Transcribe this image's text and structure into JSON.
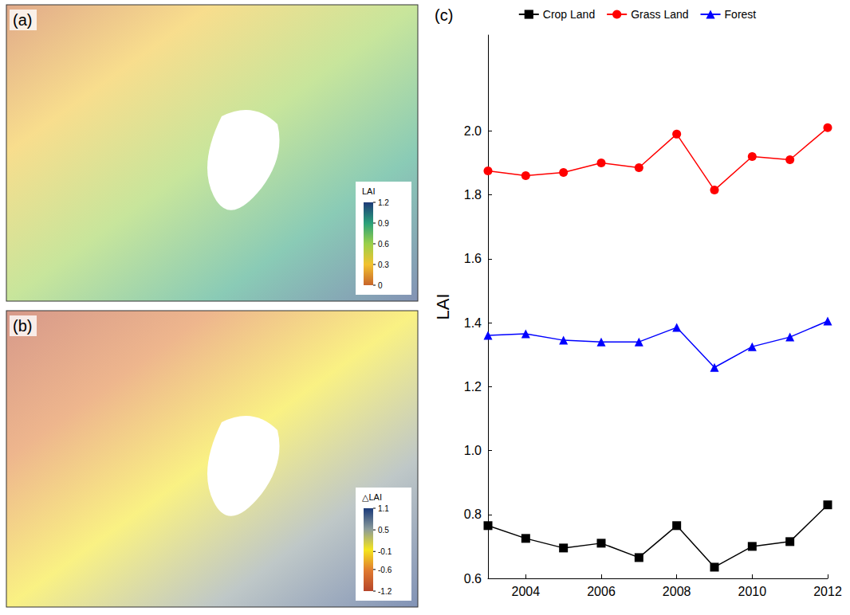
{
  "chart_data": {
    "type": "line",
    "panel_label": "(c)",
    "y_label": "LAI",
    "x": [
      2003,
      2004,
      2005,
      2006,
      2007,
      2008,
      2009,
      2010,
      2011,
      2012
    ],
    "xlim": [
      2003,
      2012
    ],
    "xticks": [
      2004,
      2006,
      2008,
      2010,
      2012
    ],
    "ylim": [
      0.6,
      2.3
    ],
    "yticks": [
      0.6,
      0.8,
      {
        "value": 1,
        "label": "1.0"
      },
      1.2,
      1.4,
      1.6,
      1.8,
      {
        "value": 2,
        "label": "2.0"
      }
    ],
    "grid": false,
    "legend": "top",
    "series": [
      {
        "name": "Crop Land",
        "color": "#000000",
        "marker": "square",
        "values": [
          0.765,
          0.725,
          0.695,
          0.71,
          0.665,
          0.765,
          0.635,
          0.7,
          0.715,
          0.83
        ]
      },
      {
        "name": "Grass Land",
        "color": "#ff0000",
        "marker": "circle",
        "values": [
          1.875,
          1.86,
          1.87,
          1.9,
          1.885,
          1.99,
          1.815,
          1.92,
          1.91,
          2.01
        ]
      },
      {
        "name": "Forest",
        "color": "#0000ff",
        "marker": "triangle",
        "values": [
          1.36,
          1.365,
          1.345,
          1.34,
          1.34,
          1.385,
          1.26,
          1.325,
          1.355,
          1.405
        ]
      }
    ]
  },
  "maps": [
    {
      "panel_label": "(a)",
      "colorbar": {
        "title": "LAI",
        "range": [
          0,
          1.2
        ],
        "ticks": [
          0,
          0.3,
          0.6,
          0.9,
          1.2
        ],
        "colors": [
          "#c8642a",
          "#f2c230",
          "#9ad04a",
          "#2aa07a",
          "#1e3a78"
        ]
      }
    },
    {
      "panel_label": "(b)",
      "colorbar": {
        "title": "△LAI",
        "range": [
          -1.2,
          1.1
        ],
        "ticks": [
          -1.2,
          -0.6,
          -0.1,
          0.5,
          1.1
        ],
        "colors": [
          "#b5452a",
          "#e07a30",
          "#f5e61e",
          "#8a9a9a",
          "#1a3a7a"
        ]
      }
    }
  ]
}
